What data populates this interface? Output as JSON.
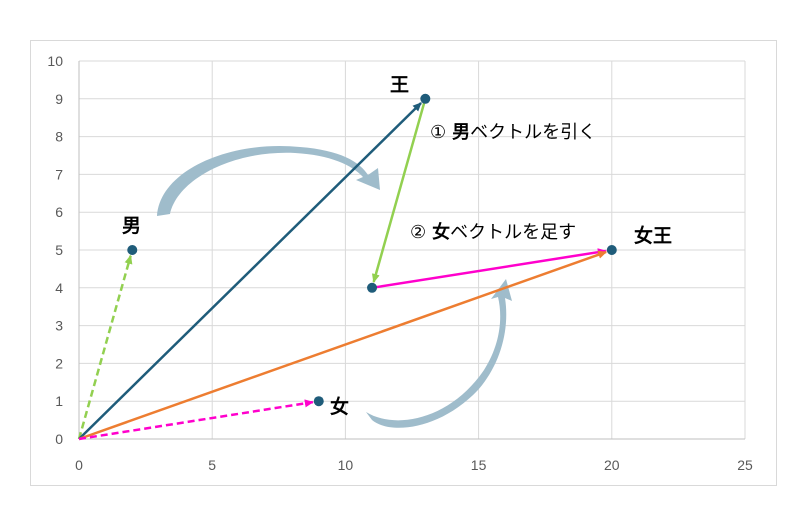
{
  "chart_data": {
    "type": "scatter",
    "xlim": [
      0,
      25
    ],
    "ylim": [
      0,
      10
    ],
    "x_ticks": [
      "0",
      "5",
      "10",
      "15",
      "20",
      "25"
    ],
    "y_ticks": [
      "0",
      "1",
      "2",
      "3",
      "4",
      "5",
      "6",
      "7",
      "8",
      "9",
      "10"
    ],
    "grid": true,
    "points": [
      {
        "label": "男",
        "x": 2,
        "y": 5
      },
      {
        "label": "王",
        "x": 13,
        "y": 9
      },
      {
        "label": "女",
        "x": 9,
        "y": 1
      },
      {
        "label": "女王",
        "x": 20,
        "y": 5
      },
      {
        "label": "",
        "x": 11,
        "y": 4
      }
    ],
    "vectors": [
      {
        "from": [
          0,
          0
        ],
        "to": [
          2,
          5
        ],
        "color": "#92d050",
        "dashed": true
      },
      {
        "from": [
          0,
          0
        ],
        "to": [
          13,
          9
        ],
        "color": "#1f5c7a",
        "dashed": false
      },
      {
        "from": [
          13,
          9
        ],
        "to": [
          11,
          4
        ],
        "color": "#92d050",
        "dashed": false
      },
      {
        "from": [
          11,
          4
        ],
        "to": [
          20,
          5
        ],
        "color": "#ff00cc",
        "dashed": false
      },
      {
        "from": [
          0,
          0
        ],
        "to": [
          20,
          5
        ],
        "color": "#ed7d31",
        "dashed": false
      },
      {
        "from": [
          0,
          0
        ],
        "to": [
          9,
          1
        ],
        "color": "#ff00cc",
        "dashed": true
      }
    ],
    "point_color": "#1f5c7a",
    "annotations": [
      {
        "num": "①",
        "bold": "男",
        "text": "ベクトルを引く"
      },
      {
        "num": "②",
        "bold": "女",
        "text": "ベクトルを足す"
      }
    ],
    "curved_arrow_color": "#9fbccb"
  }
}
